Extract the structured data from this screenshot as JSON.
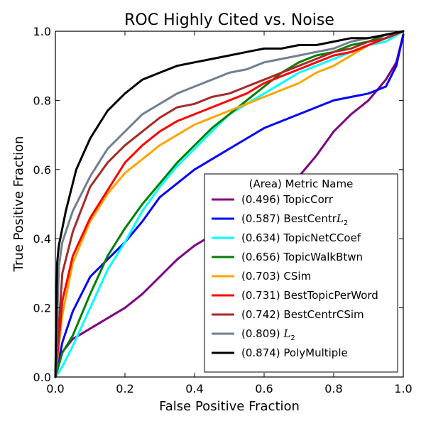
{
  "chart_data": {
    "type": "line",
    "title": "ROC Highly Cited vs. Noise",
    "xlabel": "False Positive Fraction",
    "ylabel": "True Positive Fraction",
    "xlim": [
      0,
      1
    ],
    "ylim": [
      0,
      1
    ],
    "xticks": [
      "0.0",
      "0.2",
      "0.4",
      "0.6",
      "0.8",
      "1.0"
    ],
    "yticks": [
      "0.0",
      "0.2",
      "0.4",
      "0.6",
      "0.8",
      "1.0"
    ],
    "grid": false,
    "legend_title": "(Area) Metric Name",
    "legend_position": "lower-right",
    "series": [
      {
        "name": "(0.496) TopicCorr",
        "color": "#800080",
        "x": [
          0,
          0.01,
          0.05,
          0.1,
          0.15,
          0.2,
          0.25,
          0.3,
          0.35,
          0.4,
          0.45,
          0.5,
          0.55,
          0.6,
          0.65,
          0.7,
          0.75,
          0.8,
          0.85,
          0.9,
          0.95,
          0.98,
          1.0
        ],
        "y": [
          0.0,
          0.06,
          0.11,
          0.14,
          0.17,
          0.2,
          0.24,
          0.29,
          0.34,
          0.38,
          0.41,
          0.43,
          0.45,
          0.47,
          0.52,
          0.58,
          0.64,
          0.71,
          0.76,
          0.8,
          0.86,
          0.91,
          0.99
        ]
      },
      {
        "name": "(0.587) BestCentrL2",
        "color": "#0000ff",
        "x": [
          0,
          0.02,
          0.05,
          0.1,
          0.15,
          0.2,
          0.25,
          0.3,
          0.35,
          0.4,
          0.45,
          0.5,
          0.55,
          0.6,
          0.65,
          0.7,
          0.75,
          0.8,
          0.85,
          0.9,
          0.95,
          0.98,
          1.0
        ],
        "y": [
          0.0,
          0.1,
          0.19,
          0.29,
          0.34,
          0.39,
          0.45,
          0.52,
          0.56,
          0.6,
          0.63,
          0.66,
          0.69,
          0.72,
          0.74,
          0.76,
          0.78,
          0.8,
          0.81,
          0.82,
          0.84,
          0.9,
          0.99
        ]
      },
      {
        "name": "(0.634) TopicNetCCoef",
        "color": "#00ffff",
        "x": [
          0,
          0.02,
          0.05,
          0.1,
          0.15,
          0.2,
          0.25,
          0.3,
          0.35,
          0.4,
          0.45,
          0.5,
          0.55,
          0.6,
          0.65,
          0.7,
          0.75,
          0.8,
          0.85,
          0.9,
          0.95,
          1.0
        ],
        "y": [
          0.0,
          0.03,
          0.09,
          0.2,
          0.31,
          0.39,
          0.48,
          0.55,
          0.61,
          0.66,
          0.71,
          0.76,
          0.79,
          0.82,
          0.85,
          0.88,
          0.9,
          0.92,
          0.94,
          0.96,
          0.97,
          1.0
        ]
      },
      {
        "name": "(0.656) TopicWalkBtwn",
        "color": "#008000",
        "x": [
          0,
          0.02,
          0.05,
          0.1,
          0.15,
          0.2,
          0.25,
          0.3,
          0.35,
          0.4,
          0.45,
          0.5,
          0.55,
          0.6,
          0.65,
          0.7,
          0.75,
          0.8,
          0.85,
          0.9,
          0.95,
          1.0
        ],
        "y": [
          0.0,
          0.07,
          0.12,
          0.24,
          0.35,
          0.43,
          0.5,
          0.56,
          0.62,
          0.67,
          0.72,
          0.76,
          0.8,
          0.84,
          0.88,
          0.91,
          0.93,
          0.94,
          0.96,
          0.97,
          0.99,
          1.0
        ]
      },
      {
        "name": "(0.703) CSim",
        "color": "#ffa500",
        "x": [
          0,
          0.02,
          0.05,
          0.1,
          0.15,
          0.2,
          0.25,
          0.3,
          0.35,
          0.4,
          0.45,
          0.5,
          0.55,
          0.6,
          0.65,
          0.7,
          0.75,
          0.8,
          0.85,
          0.9,
          0.95,
          1.0
        ],
        "y": [
          0.0,
          0.18,
          0.33,
          0.45,
          0.53,
          0.59,
          0.63,
          0.67,
          0.7,
          0.73,
          0.75,
          0.77,
          0.79,
          0.81,
          0.83,
          0.85,
          0.88,
          0.9,
          0.93,
          0.96,
          0.98,
          1.0
        ]
      },
      {
        "name": "(0.731) BestTopicPerWord",
        "color": "#ff0000",
        "x": [
          0,
          0.02,
          0.05,
          0.1,
          0.15,
          0.2,
          0.25,
          0.3,
          0.35,
          0.4,
          0.45,
          0.5,
          0.55,
          0.6,
          0.65,
          0.7,
          0.75,
          0.8,
          0.85,
          0.9,
          0.95,
          1.0
        ],
        "y": [
          0.0,
          0.22,
          0.35,
          0.46,
          0.54,
          0.62,
          0.67,
          0.71,
          0.74,
          0.76,
          0.78,
          0.8,
          0.82,
          0.85,
          0.87,
          0.89,
          0.91,
          0.93,
          0.94,
          0.96,
          0.98,
          1.0
        ]
      },
      {
        "name": "(0.742) BestCentrCSim",
        "color": "#a52a2a",
        "x": [
          0,
          0.02,
          0.05,
          0.1,
          0.15,
          0.2,
          0.25,
          0.3,
          0.35,
          0.4,
          0.45,
          0.5,
          0.55,
          0.6,
          0.65,
          0.7,
          0.75,
          0.8,
          0.85,
          0.9,
          0.95,
          1.0
        ],
        "y": [
          0.0,
          0.3,
          0.42,
          0.55,
          0.62,
          0.67,
          0.71,
          0.75,
          0.78,
          0.79,
          0.81,
          0.82,
          0.84,
          0.86,
          0.88,
          0.9,
          0.92,
          0.94,
          0.95,
          0.97,
          0.98,
          1.0
        ]
      },
      {
        "name": "(0.809) L2",
        "color": "#708090",
        "x": [
          0,
          0.01,
          0.02,
          0.05,
          0.1,
          0.15,
          0.2,
          0.25,
          0.3,
          0.35,
          0.4,
          0.45,
          0.5,
          0.55,
          0.6,
          0.65,
          0.7,
          0.75,
          0.8,
          0.85,
          0.9,
          0.95,
          1.0
        ],
        "y": [
          0.0,
          0.32,
          0.39,
          0.48,
          0.58,
          0.66,
          0.71,
          0.76,
          0.79,
          0.82,
          0.84,
          0.86,
          0.88,
          0.89,
          0.91,
          0.92,
          0.93,
          0.94,
          0.95,
          0.97,
          0.98,
          0.99,
          1.0
        ]
      },
      {
        "name": "(0.874) PolyMultiple",
        "color": "#000000",
        "x": [
          0,
          0.005,
          0.01,
          0.03,
          0.06,
          0.1,
          0.15,
          0.2,
          0.25,
          0.3,
          0.35,
          0.4,
          0.45,
          0.5,
          0.55,
          0.6,
          0.65,
          0.7,
          0.75,
          0.8,
          0.85,
          0.9,
          0.95,
          1.0
        ],
        "y": [
          0.0,
          0.33,
          0.38,
          0.48,
          0.6,
          0.69,
          0.77,
          0.82,
          0.86,
          0.88,
          0.9,
          0.91,
          0.92,
          0.93,
          0.94,
          0.95,
          0.95,
          0.96,
          0.96,
          0.97,
          0.98,
          0.98,
          0.99,
          1.0
        ]
      }
    ],
    "legend_entries": [
      {
        "area": "(0.496)",
        "label": "TopicCorr",
        "color": "#800080"
      },
      {
        "area": "(0.587)",
        "label": "BestCentr",
        "sub_math": "L",
        "sub_index": "2",
        "color": "#0000ff"
      },
      {
        "area": "(0.634)",
        "label": "TopicNetCCoef",
        "color": "#00ffff"
      },
      {
        "area": "(0.656)",
        "label": "TopicWalkBtwn",
        "color": "#008000"
      },
      {
        "area": "(0.703)",
        "label": "CSim",
        "color": "#ffa500"
      },
      {
        "area": "(0.731)",
        "label": "BestTopicPerWord",
        "color": "#ff0000"
      },
      {
        "area": "(0.742)",
        "label": "BestCentrCSim",
        "color": "#a52a2a"
      },
      {
        "area": "(0.809)",
        "label": "",
        "sub_math": "L",
        "sub_index": "2",
        "color": "#708090"
      },
      {
        "area": "(0.874)",
        "label": "PolyMultiple",
        "color": "#000000"
      }
    ]
  }
}
